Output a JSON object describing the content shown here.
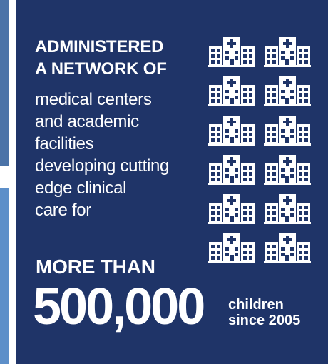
{
  "headline": {
    "line1": "ADMINISTERED",
    "line2": "A NETWORK OF"
  },
  "body_lines": [
    "medical centers",
    "and academic",
    "facilities",
    "developing cutting",
    "edge clinical",
    "care for"
  ],
  "more_than": "MORE THAN",
  "big_number": "500,000",
  "suffix": {
    "line1": "children",
    "line2": "since 2005"
  },
  "icons": {
    "name": "hospital-icon",
    "rows": 6,
    "cols": 2
  },
  "colors": {
    "panel_background": "#1f3468",
    "text": "#ffffff",
    "left_strip_top": "#4b73a8",
    "left_strip_bottom": "#5d8fc9"
  }
}
